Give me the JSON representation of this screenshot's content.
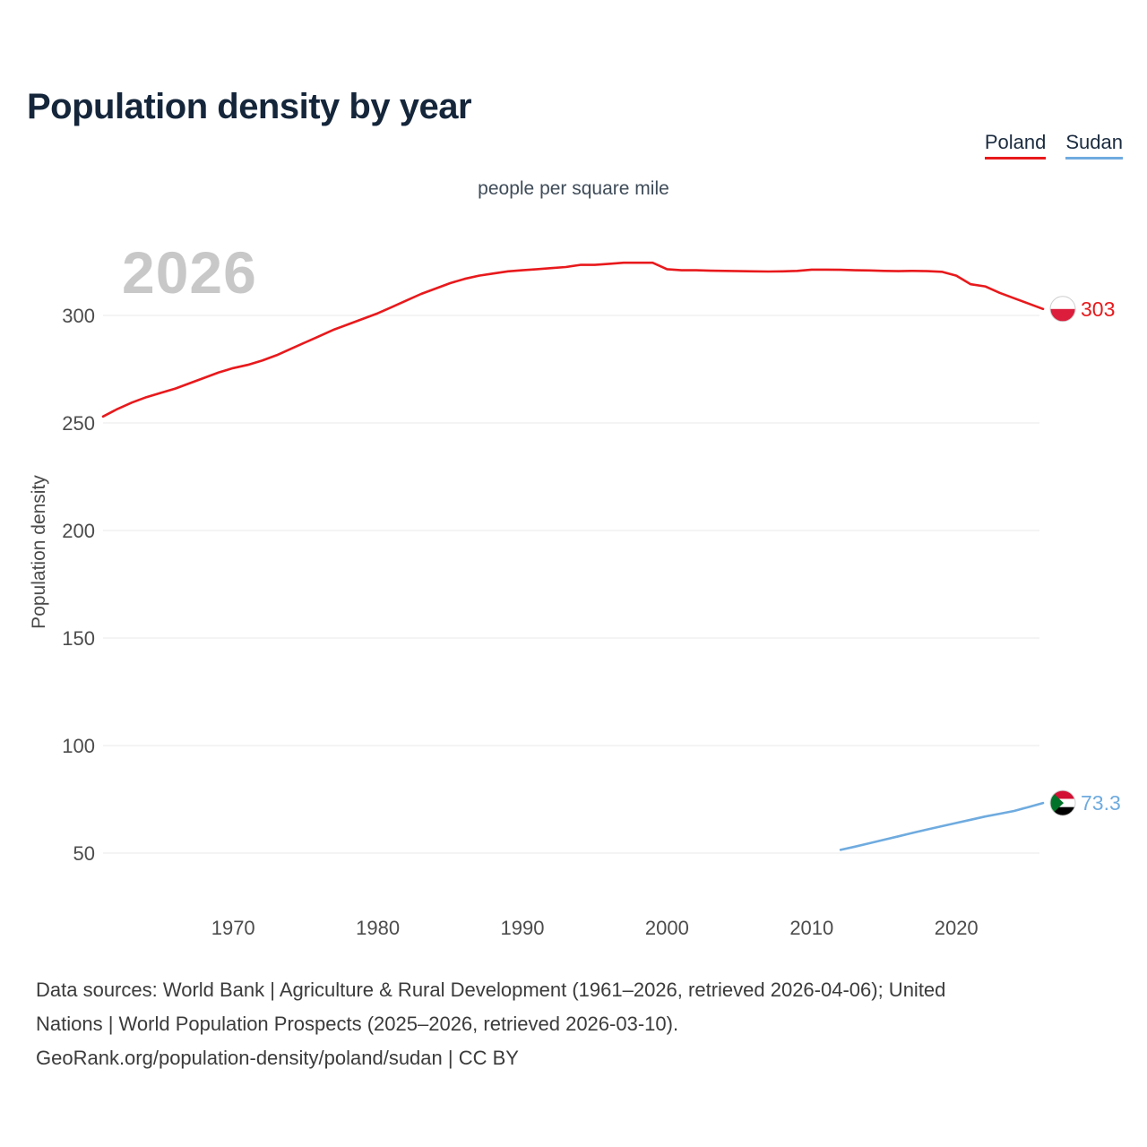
{
  "page": {
    "title": "Population density by year",
    "watermark": "2026"
  },
  "footer": {
    "line1": "Data sources: World Bank | Agriculture & Rural Development (1961–2026, retrieved 2026-04-06); United",
    "line2": "Nations | World Population Prospects (2025–2026, retrieved 2026-03-10).",
    "line3": "GeoRank.org/population-density/poland/sudan | CC BY"
  },
  "chart_data": {
    "type": "line",
    "title": "Population density by year",
    "unit": "people per square mile",
    "ylabel": "Population density",
    "xlim": [
      1961,
      2026
    ],
    "x_ticks": [
      1970,
      1980,
      1990,
      2000,
      2010,
      2020
    ],
    "y_ticks": [
      50,
      100,
      150,
      200,
      250,
      300
    ],
    "grid": "horizontal",
    "legend_position": "top-right",
    "series": [
      {
        "name": "Poland",
        "color": "#e8191c",
        "end_label": "303",
        "x": [
          1961,
          1962,
          1963,
          1964,
          1965,
          1966,
          1967,
          1968,
          1969,
          1970,
          1971,
          1972,
          1973,
          1974,
          1975,
          1976,
          1977,
          1978,
          1979,
          1980,
          1981,
          1982,
          1983,
          1984,
          1985,
          1986,
          1987,
          1988,
          1989,
          1990,
          1991,
          1992,
          1993,
          1994,
          1995,
          1996,
          1997,
          1998,
          1999,
          2000,
          2001,
          2002,
          2003,
          2004,
          2005,
          2006,
          2007,
          2008,
          2009,
          2010,
          2011,
          2012,
          2013,
          2014,
          2015,
          2016,
          2017,
          2018,
          2019,
          2020,
          2021,
          2022,
          2023,
          2024,
          2025,
          2026
        ],
        "values": [
          253,
          256.5,
          259.5,
          262,
          264,
          266,
          268.5,
          271,
          273.5,
          275.5,
          277,
          279,
          281.5,
          284.5,
          287.5,
          290.5,
          293.5,
          296,
          298.5,
          301,
          304,
          307,
          310,
          312.5,
          315,
          317,
          318.5,
          319.5,
          320.5,
          321,
          321.5,
          322,
          322.5,
          323.5,
          323.5,
          324,
          324.5,
          324.5,
          324.5,
          321.5,
          321,
          321,
          320.8,
          320.7,
          320.6,
          320.5,
          320.4,
          320.5,
          320.7,
          321.3,
          321.3,
          321.2,
          321,
          320.9,
          320.7,
          320.6,
          320.7,
          320.6,
          320.3,
          318.5,
          314.5,
          313.5,
          310.5,
          308,
          305.5,
          303
        ]
      },
      {
        "name": "Sudan",
        "color": "#6fabdf",
        "end_label": "73.3",
        "x": [
          2012,
          2013,
          2014,
          2015,
          2016,
          2017,
          2018,
          2019,
          2020,
          2021,
          2022,
          2023,
          2024,
          2025,
          2026
        ],
        "values": [
          51.5,
          53,
          54.6,
          56.2,
          57.8,
          59.4,
          61,
          62.5,
          64,
          65.5,
          67,
          68.3,
          69.6,
          71.4,
          73.3
        ]
      }
    ]
  }
}
